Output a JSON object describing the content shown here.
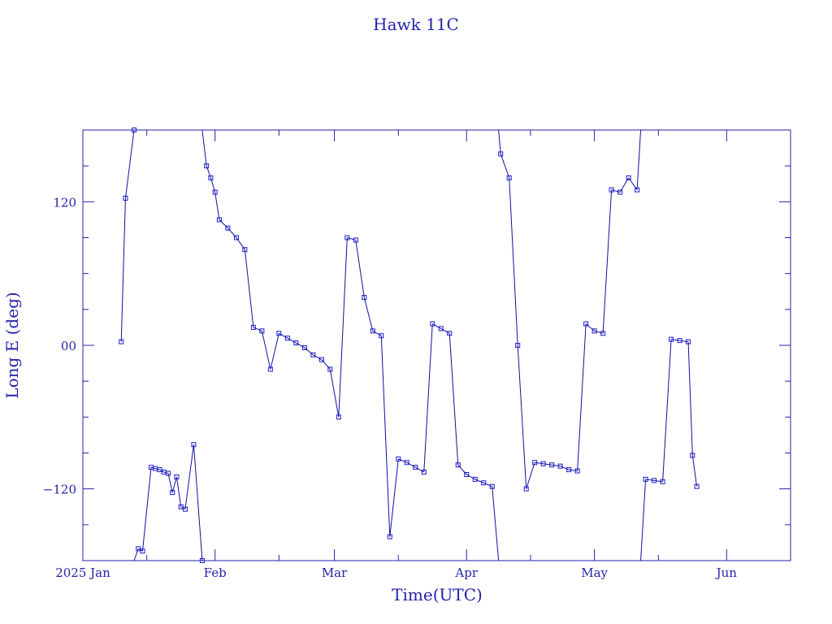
{
  "colors": {
    "axis": "#2222aa",
    "line": "#1010a0",
    "marker": "#1a1ac8",
    "background": "#ffffff"
  },
  "chart_data": {
    "type": "scatter",
    "title": "Hawk 11C",
    "xlabel": "Time(UTC)",
    "ylabel": "Long E (deg)",
    "x_range": [
      "2025-01-01",
      "2025-06-16"
    ],
    "ylim": [
      -180,
      180
    ],
    "y_ticks": [
      {
        "value": 120,
        "label": "120"
      },
      {
        "value": 0,
        "label": "00"
      },
      {
        "value": -120,
        "label": "−120"
      }
    ],
    "x_ticks": [
      {
        "value": "2025-01-01",
        "label": "2025 Jan"
      },
      {
        "value": "2025-02-01",
        "label": "Feb"
      },
      {
        "value": "2025-03-01",
        "label": "Mar"
      },
      {
        "value": "2025-04-01",
        "label": "Apr"
      },
      {
        "value": "2025-05-01",
        "label": "May"
      },
      {
        "value": "2025-06-01",
        "label": "Jun"
      }
    ],
    "grid": false,
    "series": [
      {
        "points": [
          [
            "2025-01-10",
            3
          ],
          [
            "2025-01-11",
            123
          ],
          [
            "2025-01-13",
            180
          ],
          [
            "2025-01-14",
            -170
          ],
          [
            "2025-01-15",
            -172
          ],
          [
            "2025-01-17",
            -102
          ],
          [
            "2025-01-18",
            -103
          ],
          [
            "2025-01-19",
            -104
          ],
          [
            "2025-01-20",
            -106
          ],
          [
            "2025-01-21",
            -107
          ],
          [
            "2025-01-22",
            -123
          ],
          [
            "2025-01-23",
            -110
          ],
          [
            "2025-01-24",
            -135
          ],
          [
            "2025-01-25",
            -137
          ],
          [
            "2025-01-27",
            -83
          ],
          [
            "2025-01-29",
            -180
          ],
          [
            "2025-01-30",
            150
          ],
          [
            "2025-01-31",
            140
          ],
          [
            "2025-02-01",
            128
          ],
          [
            "2025-02-02",
            105
          ],
          [
            "2025-02-04",
            98
          ],
          [
            "2025-02-06",
            90
          ],
          [
            "2025-02-08",
            80
          ],
          [
            "2025-02-10",
            15
          ],
          [
            "2025-02-12",
            12
          ],
          [
            "2025-02-14",
            -20
          ],
          [
            "2025-02-16",
            10
          ],
          [
            "2025-02-18",
            6
          ],
          [
            "2025-02-20",
            2
          ],
          [
            "2025-02-22",
            -2
          ],
          [
            "2025-02-24",
            -8
          ],
          [
            "2025-02-26",
            -12
          ],
          [
            "2025-02-28",
            -20
          ],
          [
            "2025-03-02",
            -60
          ],
          [
            "2025-03-04",
            90
          ],
          [
            "2025-03-06",
            88
          ],
          [
            "2025-03-08",
            40
          ],
          [
            "2025-03-10",
            12
          ],
          [
            "2025-03-12",
            8
          ],
          [
            "2025-03-14",
            -160
          ],
          [
            "2025-03-16",
            -95
          ],
          [
            "2025-03-18",
            -98
          ],
          [
            "2025-03-20",
            -102
          ],
          [
            "2025-03-22",
            -106
          ],
          [
            "2025-03-24",
            18
          ],
          [
            "2025-03-26",
            14
          ],
          [
            "2025-03-28",
            10
          ],
          [
            "2025-03-30",
            -100
          ],
          [
            "2025-04-01",
            -108
          ],
          [
            "2025-04-03",
            -112
          ],
          [
            "2025-04-05",
            -115
          ],
          [
            "2025-04-07",
            -118
          ],
          [
            "2025-04-09",
            160
          ],
          [
            "2025-04-11",
            140
          ],
          [
            "2025-04-13",
            0
          ],
          [
            "2025-04-15",
            -120
          ],
          [
            "2025-04-17",
            -98
          ],
          [
            "2025-04-19",
            -99
          ],
          [
            "2025-04-21",
            -100
          ],
          [
            "2025-04-23",
            -101
          ],
          [
            "2025-04-25",
            -104
          ],
          [
            "2025-04-27",
            -105
          ],
          [
            "2025-04-29",
            18
          ],
          [
            "2025-05-01",
            12
          ],
          [
            "2025-05-03",
            10
          ],
          [
            "2025-05-05",
            130
          ],
          [
            "2025-05-07",
            128
          ],
          [
            "2025-05-09",
            140
          ],
          [
            "2025-05-11",
            130
          ],
          [
            "2025-05-13",
            -112
          ],
          [
            "2025-05-15",
            -113
          ],
          [
            "2025-05-17",
            -114
          ],
          [
            "2025-05-19",
            5
          ],
          [
            "2025-05-21",
            4
          ],
          [
            "2025-05-23",
            3
          ],
          [
            "2025-05-24",
            -92
          ],
          [
            "2025-05-25",
            -118
          ]
        ]
      }
    ]
  }
}
